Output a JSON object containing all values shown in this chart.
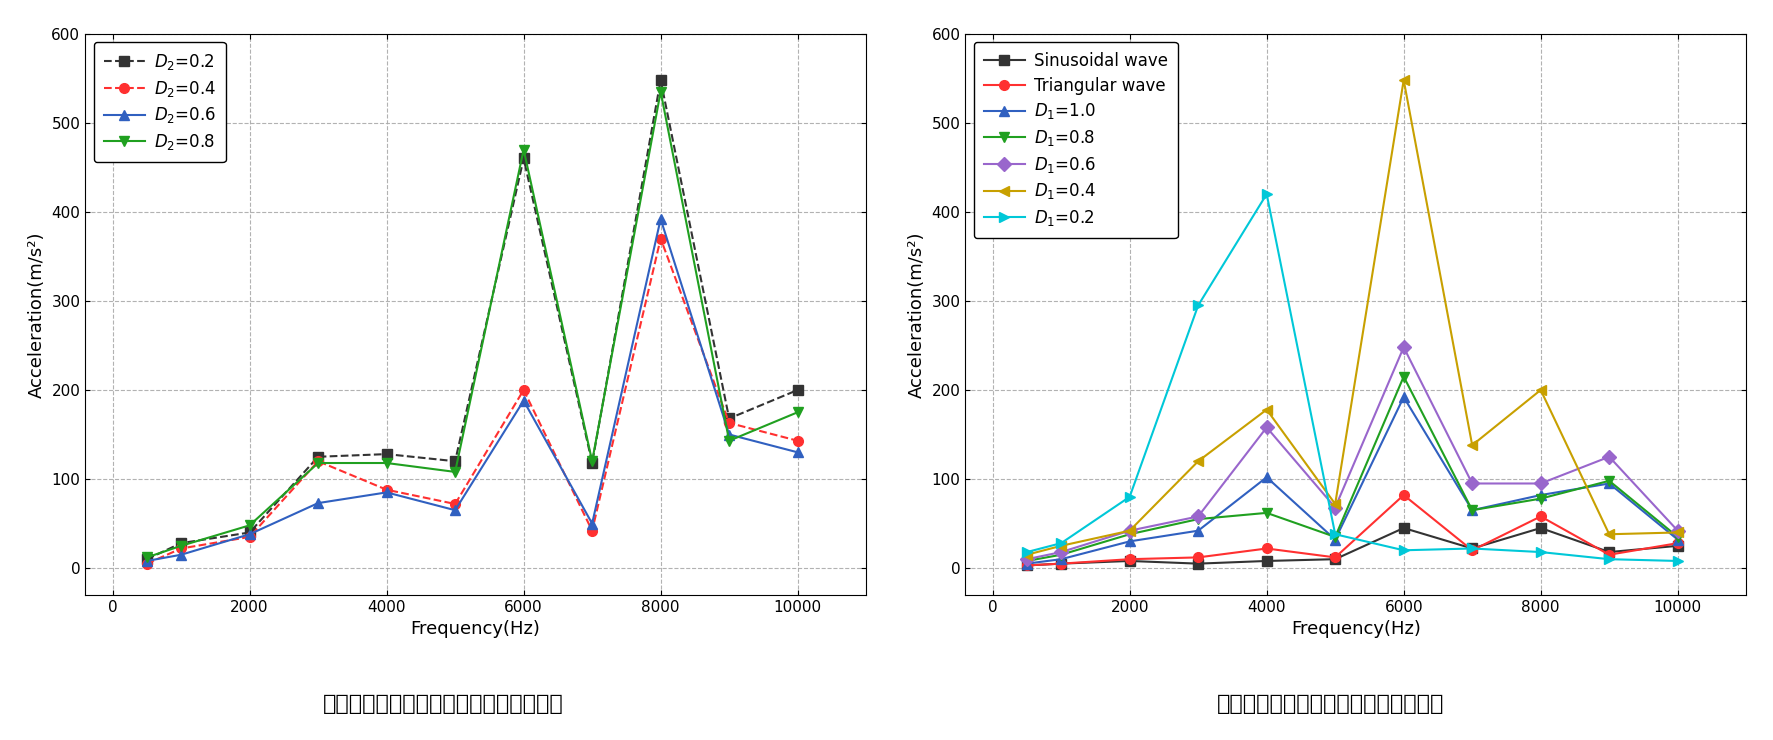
{
  "left_chart": {
    "title": "不对称激励波形下的磁环振动加速度幅値",
    "xlabel": "Frequency(Hz)",
    "ylabel": "Acceleration(m/s²)",
    "xlim": [
      -400,
      11000
    ],
    "ylim": [
      -30,
      600
    ],
    "xticks": [
      0,
      2000,
      4000,
      6000,
      8000,
      10000
    ],
    "yticks": [
      0,
      100,
      200,
      300,
      400,
      500,
      600
    ],
    "series": [
      {
        "label": "$D_2$=0.2",
        "color": "#333333",
        "linestyle": "--",
        "marker": "s",
        "x": [
          500,
          1000,
          2000,
          3000,
          4000,
          5000,
          6000,
          7000,
          8000,
          9000,
          10000
        ],
        "y": [
          10,
          28,
          40,
          125,
          128,
          120,
          460,
          118,
          548,
          168,
          200
        ]
      },
      {
        "label": "$D_2$=0.4",
        "color": "#ff3030",
        "linestyle": "--",
        "marker": "o",
        "x": [
          500,
          1000,
          2000,
          3000,
          4000,
          5000,
          6000,
          7000,
          8000,
          9000,
          10000
        ],
        "y": [
          5,
          22,
          35,
          120,
          88,
          72,
          200,
          42,
          370,
          163,
          143
        ]
      },
      {
        "label": "$D_2$=0.6",
        "color": "#3060c0",
        "linestyle": "-",
        "marker": "^",
        "x": [
          500,
          1000,
          2000,
          3000,
          4000,
          5000,
          6000,
          7000,
          8000,
          9000,
          10000
        ],
        "y": [
          8,
          15,
          38,
          73,
          85,
          65,
          188,
          50,
          392,
          150,
          130
        ]
      },
      {
        "label": "$D_2$=0.8",
        "color": "#20a020",
        "linestyle": "-",
        "marker": "v",
        "x": [
          500,
          1000,
          2000,
          3000,
          4000,
          5000,
          6000,
          7000,
          8000,
          9000,
          10000
        ],
        "y": [
          12,
          25,
          48,
          118,
          118,
          108,
          470,
          120,
          535,
          143,
          175
        ]
      }
    ]
  },
  "right_chart": {
    "title": "对称激励波形下的磁环振动加速度幅値",
    "xlabel": "Frequency(Hz)",
    "ylabel": "Acceleration(m/s²)",
    "xlim": [
      -400,
      11000
    ],
    "ylim": [
      -30,
      600
    ],
    "xticks": [
      0,
      2000,
      4000,
      6000,
      8000,
      10000
    ],
    "yticks": [
      0,
      100,
      200,
      300,
      400,
      500,
      600
    ],
    "series": [
      {
        "label": "Sinusoidal wave",
        "color": "#333333",
        "linestyle": "-",
        "marker": "s",
        "x": [
          500,
          1000,
          2000,
          3000,
          4000,
          5000,
          6000,
          7000,
          8000,
          9000,
          10000
        ],
        "y": [
          3,
          5,
          8,
          5,
          8,
          10,
          45,
          22,
          45,
          18,
          25
        ]
      },
      {
        "label": "Triangular wave",
        "color": "#ff3030",
        "linestyle": "-",
        "marker": "o",
        "x": [
          500,
          1000,
          2000,
          3000,
          4000,
          5000,
          6000,
          7000,
          8000,
          9000,
          10000
        ],
        "y": [
          3,
          5,
          10,
          12,
          22,
          12,
          82,
          20,
          58,
          15,
          28
        ]
      },
      {
        "label": "$D_1$=1.0",
        "color": "#3060c0",
        "linestyle": "-",
        "marker": "^",
        "x": [
          500,
          1000,
          2000,
          3000,
          4000,
          5000,
          6000,
          7000,
          8000,
          9000,
          10000
        ],
        "y": [
          5,
          10,
          30,
          42,
          102,
          32,
          192,
          65,
          82,
          95,
          32
        ]
      },
      {
        "label": "$D_1$=0.8",
        "color": "#20a020",
        "linestyle": "-",
        "marker": "v",
        "x": [
          500,
          1000,
          2000,
          3000,
          4000,
          5000,
          6000,
          7000,
          8000,
          9000,
          10000
        ],
        "y": [
          8,
          15,
          38,
          55,
          62,
          35,
          215,
          65,
          78,
          98,
          35
        ]
      },
      {
        "label": "$D_1$=0.6",
        "color": "#9966cc",
        "linestyle": "-",
        "marker": "D",
        "x": [
          500,
          1000,
          2000,
          3000,
          4000,
          5000,
          6000,
          7000,
          8000,
          9000,
          10000
        ],
        "y": [
          10,
          18,
          42,
          58,
          158,
          68,
          248,
          95,
          95,
          125,
          42
        ]
      },
      {
        "label": "$D_1$=0.4",
        "color": "#c8a000",
        "linestyle": "-",
        "marker": "<",
        "x": [
          500,
          1000,
          2000,
          3000,
          4000,
          5000,
          6000,
          7000,
          8000,
          9000,
          10000
        ],
        "y": [
          15,
          25,
          42,
          120,
          178,
          72,
          548,
          138,
          200,
          38,
          40
        ]
      },
      {
        "label": "$D_1$=0.2",
        "color": "#00c8d8",
        "linestyle": "-",
        "marker": ">",
        "x": [
          500,
          1000,
          2000,
          3000,
          4000,
          5000,
          6000,
          7000,
          8000,
          9000,
          10000
        ],
        "y": [
          18,
          28,
          80,
          295,
          420,
          38,
          20,
          22,
          18,
          10,
          8
        ]
      }
    ]
  }
}
